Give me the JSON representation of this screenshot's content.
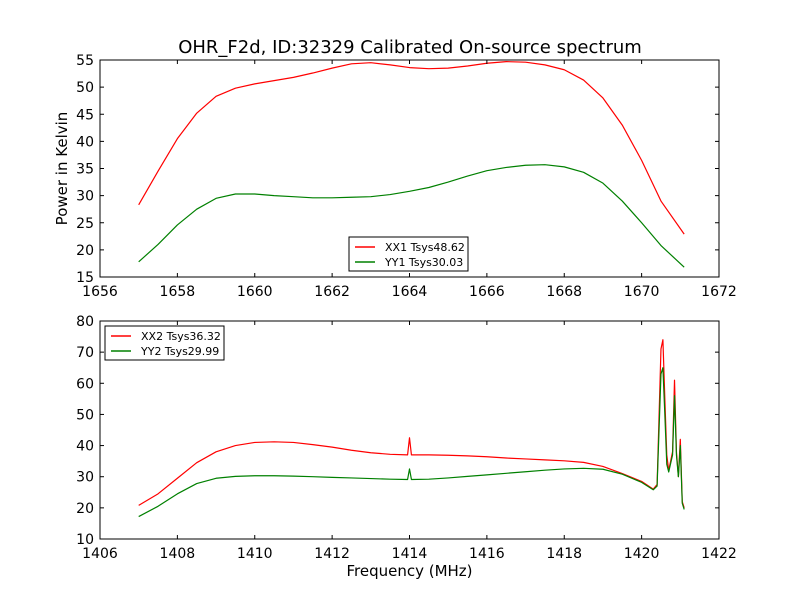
{
  "title": "OHR_F2d, ID:32329 Calibrated On-source spectrum",
  "chart_data": [
    {
      "type": "line",
      "ylabel": "Power in Kelvin",
      "xlabel": "",
      "xlim": [
        1656,
        1672
      ],
      "ylim": [
        15,
        55
      ],
      "xticks": [
        1656,
        1658,
        1660,
        1662,
        1664,
        1666,
        1668,
        1670,
        1672
      ],
      "yticks": [
        15,
        20,
        25,
        30,
        35,
        40,
        45,
        50,
        55
      ],
      "legend": "lower-center",
      "series": [
        {
          "name": "XX1 Tsys48.62",
          "color": "#ff0000",
          "points": [
            [
              1657.0,
              28.3
            ],
            [
              1657.5,
              34.5
            ],
            [
              1658.0,
              40.5
            ],
            [
              1658.5,
              45.2
            ],
            [
              1659.0,
              48.3
            ],
            [
              1659.5,
              49.8
            ],
            [
              1660.0,
              50.6
            ],
            [
              1660.5,
              51.2
            ],
            [
              1661.0,
              51.8
            ],
            [
              1661.5,
              52.6
            ],
            [
              1662.0,
              53.5
            ],
            [
              1662.5,
              54.3
            ],
            [
              1663.0,
              54.5
            ],
            [
              1663.5,
              54.1
            ],
            [
              1664.0,
              53.6
            ],
            [
              1664.5,
              53.4
            ],
            [
              1665.0,
              53.5
            ],
            [
              1665.5,
              53.9
            ],
            [
              1666.0,
              54.4
            ],
            [
              1666.5,
              54.7
            ],
            [
              1667.0,
              54.6
            ],
            [
              1667.5,
              54.1
            ],
            [
              1668.0,
              53.2
            ],
            [
              1668.5,
              51.3
            ],
            [
              1669.0,
              48.0
            ],
            [
              1669.5,
              43.0
            ],
            [
              1670.0,
              36.5
            ],
            [
              1670.5,
              29.0
            ],
            [
              1671.1,
              22.9
            ]
          ]
        },
        {
          "name": "YY1 Tsys30.03",
          "color": "#008000",
          "points": [
            [
              1657.0,
              17.8
            ],
            [
              1657.5,
              21.0
            ],
            [
              1658.0,
              24.6
            ],
            [
              1658.5,
              27.5
            ],
            [
              1659.0,
              29.5
            ],
            [
              1659.5,
              30.3
            ],
            [
              1660.0,
              30.3
            ],
            [
              1660.5,
              30.0
            ],
            [
              1661.0,
              29.8
            ],
            [
              1661.5,
              29.6
            ],
            [
              1662.0,
              29.6
            ],
            [
              1662.5,
              29.7
            ],
            [
              1663.0,
              29.8
            ],
            [
              1663.5,
              30.2
            ],
            [
              1664.0,
              30.8
            ],
            [
              1664.5,
              31.5
            ],
            [
              1665.0,
              32.5
            ],
            [
              1665.5,
              33.6
            ],
            [
              1666.0,
              34.6
            ],
            [
              1666.5,
              35.2
            ],
            [
              1667.0,
              35.6
            ],
            [
              1667.5,
              35.7
            ],
            [
              1668.0,
              35.3
            ],
            [
              1668.5,
              34.3
            ],
            [
              1669.0,
              32.3
            ],
            [
              1669.5,
              29.0
            ],
            [
              1670.0,
              25.0
            ],
            [
              1670.5,
              20.8
            ],
            [
              1671.1,
              16.8
            ]
          ]
        }
      ]
    },
    {
      "type": "line",
      "ylabel": "",
      "xlabel": "Frequency (MHz)",
      "xlim": [
        1406,
        1422
      ],
      "ylim": [
        10,
        80
      ],
      "xticks": [
        1406,
        1408,
        1410,
        1412,
        1414,
        1416,
        1418,
        1420,
        1422
      ],
      "yticks": [
        10,
        20,
        30,
        40,
        50,
        60,
        70,
        80
      ],
      "legend": "upper-left",
      "series": [
        {
          "name": "XX2 Tsys36.32",
          "color": "#ff0000",
          "points": [
            [
              1407.0,
              20.8
            ],
            [
              1407.5,
              24.5
            ],
            [
              1408.0,
              29.5
            ],
            [
              1408.5,
              34.5
            ],
            [
              1409.0,
              38.0
            ],
            [
              1409.5,
              40.0
            ],
            [
              1410.0,
              41.0
            ],
            [
              1410.5,
              41.2
            ],
            [
              1411.0,
              41.0
            ],
            [
              1411.5,
              40.3
            ],
            [
              1412.0,
              39.5
            ],
            [
              1412.5,
              38.5
            ],
            [
              1413.0,
              37.7
            ],
            [
              1413.5,
              37.2
            ],
            [
              1413.95,
              37.0
            ],
            [
              1414.0,
              42.5
            ],
            [
              1414.05,
              37.0
            ],
            [
              1414.5,
              37.0
            ],
            [
              1415.0,
              36.9
            ],
            [
              1415.5,
              36.7
            ],
            [
              1416.0,
              36.4
            ],
            [
              1416.5,
              36.0
            ],
            [
              1417.0,
              35.7
            ],
            [
              1417.5,
              35.4
            ],
            [
              1418.0,
              35.1
            ],
            [
              1418.5,
              34.6
            ],
            [
              1419.0,
              33.3
            ],
            [
              1419.5,
              31.0
            ],
            [
              1420.0,
              28.5
            ],
            [
              1420.3,
              26.0
            ],
            [
              1420.4,
              27.5
            ],
            [
              1420.5,
              71.0
            ],
            [
              1420.55,
              74.0
            ],
            [
              1420.6,
              55.0
            ],
            [
              1420.65,
              37.0
            ],
            [
              1420.7,
              32.0
            ],
            [
              1420.8,
              38.0
            ],
            [
              1420.85,
              61.0
            ],
            [
              1420.9,
              38.0
            ],
            [
              1420.95,
              30.0
            ],
            [
              1421.0,
              42.0
            ],
            [
              1421.05,
              22.0
            ],
            [
              1421.1,
              20.0
            ]
          ]
        },
        {
          "name": "YY2 Tsys29.99",
          "color": "#008000",
          "points": [
            [
              1407.0,
              17.2
            ],
            [
              1407.5,
              20.5
            ],
            [
              1408.0,
              24.5
            ],
            [
              1408.5,
              27.8
            ],
            [
              1409.0,
              29.5
            ],
            [
              1409.5,
              30.1
            ],
            [
              1410.0,
              30.3
            ],
            [
              1410.5,
              30.3
            ],
            [
              1411.0,
              30.2
            ],
            [
              1411.5,
              30.0
            ],
            [
              1412.0,
              29.8
            ],
            [
              1412.5,
              29.6
            ],
            [
              1413.0,
              29.4
            ],
            [
              1413.5,
              29.2
            ],
            [
              1413.95,
              29.1
            ],
            [
              1414.0,
              32.5
            ],
            [
              1414.05,
              29.1
            ],
            [
              1414.5,
              29.2
            ],
            [
              1415.0,
              29.6
            ],
            [
              1415.5,
              30.1
            ],
            [
              1416.0,
              30.6
            ],
            [
              1416.5,
              31.1
            ],
            [
              1417.0,
              31.6
            ],
            [
              1417.5,
              32.1
            ],
            [
              1418.0,
              32.5
            ],
            [
              1418.5,
              32.7
            ],
            [
              1419.0,
              32.4
            ],
            [
              1419.5,
              30.8
            ],
            [
              1420.0,
              28.2
            ],
            [
              1420.3,
              25.8
            ],
            [
              1420.4,
              27.0
            ],
            [
              1420.5,
              63.0
            ],
            [
              1420.55,
              65.0
            ],
            [
              1420.6,
              50.0
            ],
            [
              1420.65,
              34.0
            ],
            [
              1420.7,
              31.5
            ],
            [
              1420.8,
              37.0
            ],
            [
              1420.85,
              56.0
            ],
            [
              1420.9,
              37.0
            ],
            [
              1420.95,
              30.0
            ],
            [
              1421.0,
              40.0
            ],
            [
              1421.05,
              21.5
            ],
            [
              1421.1,
              19.5
            ]
          ]
        }
      ]
    }
  ]
}
